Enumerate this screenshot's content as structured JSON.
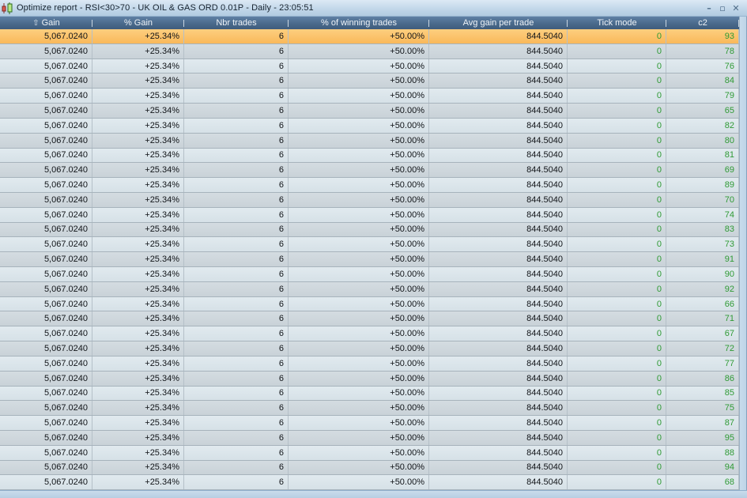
{
  "window": {
    "title": "Optimize report - RSI<30>70 - UK OIL & GAS ORD 0.01P - Daily - 23:05:51",
    "icon": "candlestick-chart",
    "controls": {
      "minimize": "–",
      "maximize": "▫",
      "close": "✕"
    }
  },
  "table": {
    "columns": [
      {
        "key": "gain",
        "label": "Gain",
        "sort": "asc"
      },
      {
        "key": "pct_gain",
        "label": "% Gain"
      },
      {
        "key": "nbr_trades",
        "label": "Nbr trades"
      },
      {
        "key": "pct_winning",
        "label": "% of winning trades"
      },
      {
        "key": "avg_gain",
        "label": "Avg gain per trade"
      },
      {
        "key": "tick_mode",
        "label": "Tick mode"
      },
      {
        "key": "c2",
        "label": "c2"
      }
    ],
    "sort_icon": "⇧",
    "row_values": {
      "gain": "5,067.0240",
      "pct_gain": "+25.34%",
      "nbr_trades": "6",
      "pct_winning": "+50.00%",
      "avg_gain": "844.5040",
      "tick_mode": "0"
    },
    "c2_values": [
      93,
      78,
      76,
      84,
      79,
      65,
      82,
      80,
      81,
      69,
      89,
      70,
      74,
      83,
      73,
      91,
      90,
      92,
      66,
      71,
      67,
      72,
      77,
      86,
      85,
      75,
      87,
      95,
      88,
      94,
      68
    ],
    "selected_row_index": 0
  },
  "colors": {
    "selected_row": "#fbc068",
    "positive_green": "#2f9a35",
    "header_bg": "#4a6a8c",
    "titlebar_bg": "#bcd3e7"
  }
}
